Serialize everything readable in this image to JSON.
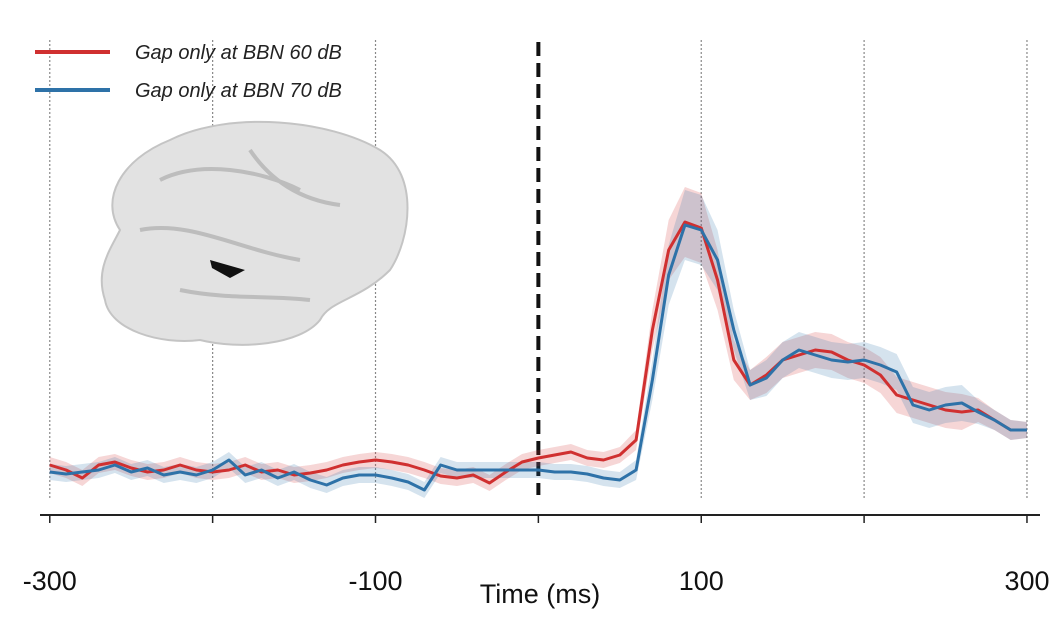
{
  "chart_data": {
    "type": "line",
    "xlabel": "Time (ms)",
    "x": [
      -300,
      -290,
      -280,
      -270,
      -260,
      -250,
      -240,
      -230,
      -220,
      -210,
      -200,
      -190,
      -180,
      -170,
      -160,
      -150,
      -140,
      -130,
      -120,
      -110,
      -100,
      -90,
      -80,
      -70,
      -60,
      -50,
      -40,
      -30,
      -20,
      -10,
      0,
      10,
      20,
      30,
      40,
      50,
      60,
      70,
      80,
      90,
      100,
      110,
      120,
      130,
      140,
      150,
      160,
      170,
      180,
      190,
      200,
      210,
      220,
      230,
      240,
      250,
      260,
      270,
      280,
      290,
      300
    ],
    "series": [
      {
        "name": "Gap only at BBN 60 dB",
        "color": "#d03030",
        "values": [
          50,
          45,
          37,
          50,
          53,
          47,
          43,
          45,
          50,
          45,
          43,
          45,
          50,
          43,
          45,
          40,
          42,
          45,
          50,
          53,
          55,
          53,
          50,
          45,
          39,
          37,
          40,
          32,
          43,
          53,
          57,
          60,
          63,
          57,
          55,
          60,
          75,
          185,
          265,
          293,
          287,
          235,
          155,
          130,
          140,
          155,
          160,
          165,
          163,
          155,
          150,
          140,
          120,
          115,
          110,
          105,
          103,
          105,
          95,
          85,
          85
        ],
        "errors": [
          8,
          8,
          8,
          8,
          8,
          8,
          8,
          8,
          8,
          8,
          8,
          8,
          8,
          8,
          8,
          8,
          8,
          8,
          8,
          8,
          8,
          8,
          8,
          8,
          8,
          8,
          8,
          8,
          8,
          8,
          8,
          8,
          8,
          8,
          8,
          8,
          10,
          20,
          30,
          35,
          35,
          30,
          20,
          15,
          18,
          18,
          18,
          18,
          18,
          18,
          18,
          18,
          18,
          18,
          18,
          18,
          18,
          12,
          10,
          10,
          8
        ]
      },
      {
        "name": "Gap only at BBN 70 dB",
        "color": "#2e72a8",
        "values": [
          43,
          41,
          43,
          45,
          50,
          43,
          47,
          40,
          43,
          40,
          45,
          55,
          40,
          45,
          37,
          43,
          35,
          30,
          37,
          40,
          40,
          37,
          33,
          25,
          50,
          45,
          45,
          45,
          45,
          45,
          45,
          43,
          43,
          41,
          37,
          35,
          45,
          135,
          240,
          290,
          285,
          255,
          185,
          130,
          137,
          155,
          165,
          160,
          155,
          153,
          155,
          150,
          143,
          110,
          105,
          110,
          112,
          103,
          95,
          85,
          85
        ],
        "errors": [
          8,
          8,
          8,
          8,
          8,
          8,
          8,
          8,
          8,
          8,
          8,
          8,
          8,
          8,
          8,
          8,
          8,
          8,
          8,
          8,
          8,
          8,
          8,
          8,
          8,
          8,
          8,
          8,
          8,
          8,
          8,
          8,
          8,
          8,
          8,
          8,
          10,
          20,
          30,
          35,
          35,
          30,
          20,
          15,
          18,
          18,
          18,
          18,
          18,
          18,
          18,
          18,
          18,
          18,
          18,
          18,
          18,
          12,
          10,
          10,
          8
        ]
      }
    ],
    "xlim": [
      -306,
      308
    ],
    "xticks": [
      -300,
      -100,
      100,
      300
    ],
    "minor_xticks": [
      -200,
      0,
      200
    ],
    "ylim": [
      0,
      500
    ],
    "vline": 0,
    "grid": true,
    "legend": "upper-left"
  }
}
